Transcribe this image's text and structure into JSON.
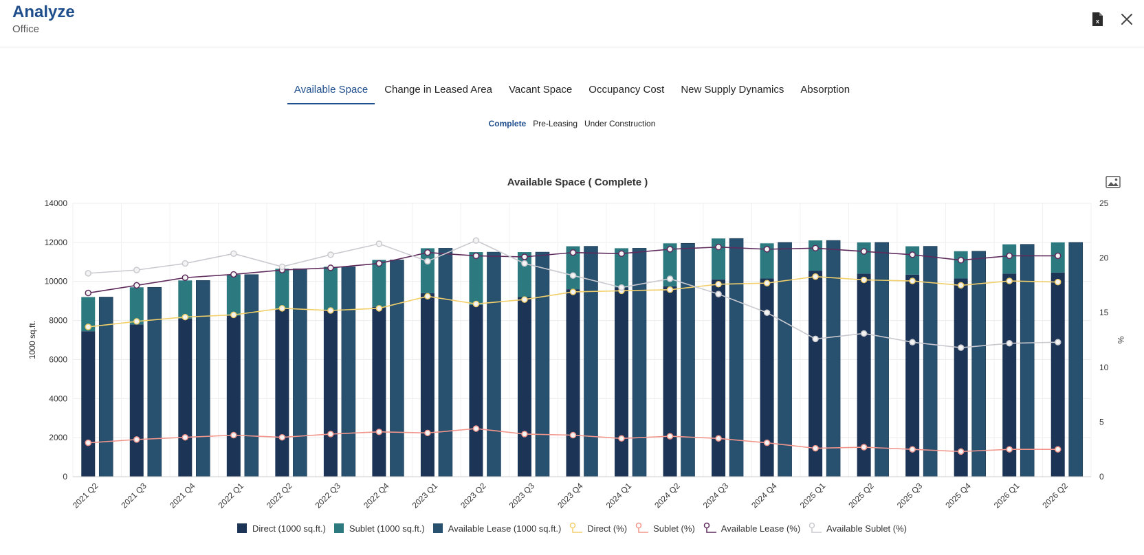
{
  "header": {
    "title": "Analyze",
    "subtitle": "Office",
    "export_icon": "excel-file-icon",
    "close_icon": "close-icon"
  },
  "tabs": [
    {
      "label": "Available Space",
      "active": true
    },
    {
      "label": "Change in Leased Area",
      "active": false
    },
    {
      "label": "Vacant Space",
      "active": false
    },
    {
      "label": "Occupancy Cost",
      "active": false
    },
    {
      "label": "New Supply Dynamics",
      "active": false
    },
    {
      "label": "Absorption",
      "active": false
    }
  ],
  "subtabs": [
    {
      "label": "Complete",
      "active": true
    },
    {
      "label": "Pre-Leasing",
      "active": false
    },
    {
      "label": "Under Construction",
      "active": false
    }
  ],
  "colors": {
    "direct_bar": "#1c3557",
    "sublet_bar": "#2c7a80",
    "available_lease_bar": "#28506f",
    "direct_pct": "#f2cf6a",
    "sublet_pct": "#f2968c",
    "available_lease_pct": "#5e2b5c",
    "available_sublet_pct": "#c9c9cf",
    "accent": "#1f4e8c"
  },
  "chart_data": {
    "type": "bar",
    "title": "Available Space ( Complete )",
    "ylabel": "1000 sq.ft.",
    "y2label": "%",
    "ylim": [
      0,
      14000
    ],
    "y2lim": [
      0,
      25
    ],
    "yticks": [
      0,
      2000,
      4000,
      6000,
      8000,
      10000,
      12000,
      14000
    ],
    "y2ticks": [
      0,
      5,
      10,
      15,
      20,
      25
    ],
    "grid": true,
    "legend_position": "bottom",
    "categories": [
      "2021 Q2",
      "2021 Q3",
      "2021 Q4",
      "2022 Q1",
      "2022 Q2",
      "2022 Q3",
      "2022 Q4",
      "2023 Q1",
      "2023 Q2",
      "2023 Q3",
      "2023 Q4",
      "2024 Q1",
      "2024 Q2",
      "2024 Q3",
      "2024 Q4",
      "2025 Q1",
      "2025 Q2",
      "2025 Q3",
      "2025 Q4",
      "2026 Q1",
      "2026 Q2"
    ],
    "series": [
      {
        "name": "Direct (1000 sq.ft.)",
        "kind": "bar",
        "stack": "a",
        "axis": "left",
        "values": [
          7450,
          7800,
          8100,
          8250,
          8600,
          8500,
          8700,
          9400,
          8800,
          9200,
          9600,
          9700,
          9750,
          10100,
          10150,
          10550,
          10400,
          10350,
          10150,
          10400,
          10450
        ]
      },
      {
        "name": "Sublet (1000 sq.ft.)",
        "kind": "bar",
        "stack": "a",
        "axis": "left",
        "values": [
          1750,
          1900,
          1950,
          2100,
          2050,
          2250,
          2400,
          2300,
          2700,
          2300,
          2200,
          2000,
          2200,
          2100,
          1800,
          1550,
          1600,
          1450,
          1400,
          1500,
          1550
        ]
      },
      {
        "name": "Available Lease (1000 sq.ft.)",
        "kind": "bar",
        "stack": "b",
        "axis": "left",
        "values": [
          9200,
          9700,
          10050,
          10350,
          10650,
          10750,
          11100,
          11700,
          11500,
          11500,
          11800,
          11700,
          11950,
          12200,
          12000,
          12100,
          12000,
          11800,
          11550,
          11900,
          12000
        ]
      },
      {
        "name": "Direct (%)",
        "kind": "line",
        "axis": "right",
        "values": [
          13.7,
          14.2,
          14.6,
          14.8,
          15.4,
          15.2,
          15.4,
          16.5,
          15.8,
          16.2,
          16.9,
          17.0,
          17.1,
          17.6,
          17.7,
          18.3,
          18.0,
          17.9,
          17.5,
          17.9,
          17.8
        ]
      },
      {
        "name": "Sublet (%)",
        "kind": "line",
        "axis": "right",
        "values": [
          3.1,
          3.4,
          3.6,
          3.8,
          3.6,
          3.9,
          4.1,
          4.0,
          4.4,
          3.9,
          3.8,
          3.5,
          3.7,
          3.5,
          3.1,
          2.6,
          2.7,
          2.5,
          2.3,
          2.5,
          2.5
        ]
      },
      {
        "name": "Available Lease (%)",
        "kind": "line",
        "axis": "right",
        "values": [
          16.8,
          17.5,
          18.2,
          18.5,
          18.9,
          19.1,
          19.5,
          20.5,
          20.2,
          20.1,
          20.5,
          20.4,
          20.8,
          21.0,
          20.8,
          20.9,
          20.6,
          20.3,
          19.8,
          20.2,
          20.2
        ]
      },
      {
        "name": "Available Sublet (%)",
        "kind": "line",
        "axis": "right",
        "values": [
          18.6,
          18.9,
          19.5,
          20.4,
          19.2,
          20.3,
          21.3,
          19.7,
          21.6,
          19.5,
          18.4,
          17.3,
          18.1,
          16.7,
          15.0,
          12.6,
          13.1,
          12.3,
          11.8,
          12.2,
          12.3
        ]
      }
    ]
  }
}
